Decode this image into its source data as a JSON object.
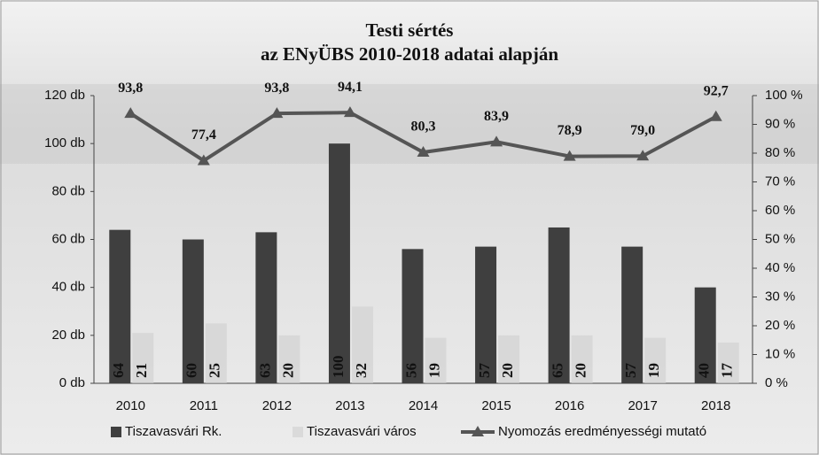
{
  "chart_data": {
    "type": "bar",
    "title": [
      "Testi sértés",
      "az ENyÜBS 2010-2018 adatai alapján"
    ],
    "categories": [
      "2010",
      "2011",
      "2012",
      "2013",
      "2014",
      "2015",
      "2016",
      "2017",
      "2018"
    ],
    "series": [
      {
        "name": "Tiszavasvári Rk.",
        "color": "#3f3f3f",
        "values": [
          64,
          60,
          63,
          100,
          56,
          57,
          65,
          57,
          40
        ]
      },
      {
        "name": "Tiszavasvári város",
        "color": "#cfcfcf",
        "values": [
          21,
          25,
          20,
          32,
          19,
          20,
          20,
          19,
          17
        ]
      },
      {
        "name": "Nyomozás eredményességi mutató",
        "color": "#555555",
        "type": "line",
        "axis": "y2",
        "values": [
          93.8,
          77.4,
          93.8,
          94.1,
          80.3,
          83.9,
          78.9,
          79.0,
          92.7
        ],
        "value_labels": [
          "93,8",
          "77,4",
          "93,8",
          "94,1",
          "80,3",
          "83,9",
          "78,9",
          "79,0",
          "92,7"
        ]
      }
    ],
    "ylim": [
      0,
      120
    ],
    "yticks": [
      {
        "value": 0,
        "label": "0 db"
      },
      {
        "value": 20,
        "label": "20 db"
      },
      {
        "value": 40,
        "label": "40 db"
      },
      {
        "value": 60,
        "label": "60 db"
      },
      {
        "value": 80,
        "label": "80 db"
      },
      {
        "value": 100,
        "label": "100 db"
      },
      {
        "value": 120,
        "label": "120 db"
      }
    ],
    "y2lim": [
      0,
      100
    ],
    "y2ticks": [
      {
        "value": 0,
        "label": "0 %"
      },
      {
        "value": 10,
        "label": "10 %"
      },
      {
        "value": 20,
        "label": "20 %"
      },
      {
        "value": 30,
        "label": "30 %"
      },
      {
        "value": 40,
        "label": "40 %"
      },
      {
        "value": 50,
        "label": "50 %"
      },
      {
        "value": 60,
        "label": "60 %"
      },
      {
        "value": 70,
        "label": "70 %"
      },
      {
        "value": 80,
        "label": "80 %"
      },
      {
        "value": 90,
        "label": "90 %"
      },
      {
        "value": 100,
        "label": "100 %"
      }
    ]
  }
}
